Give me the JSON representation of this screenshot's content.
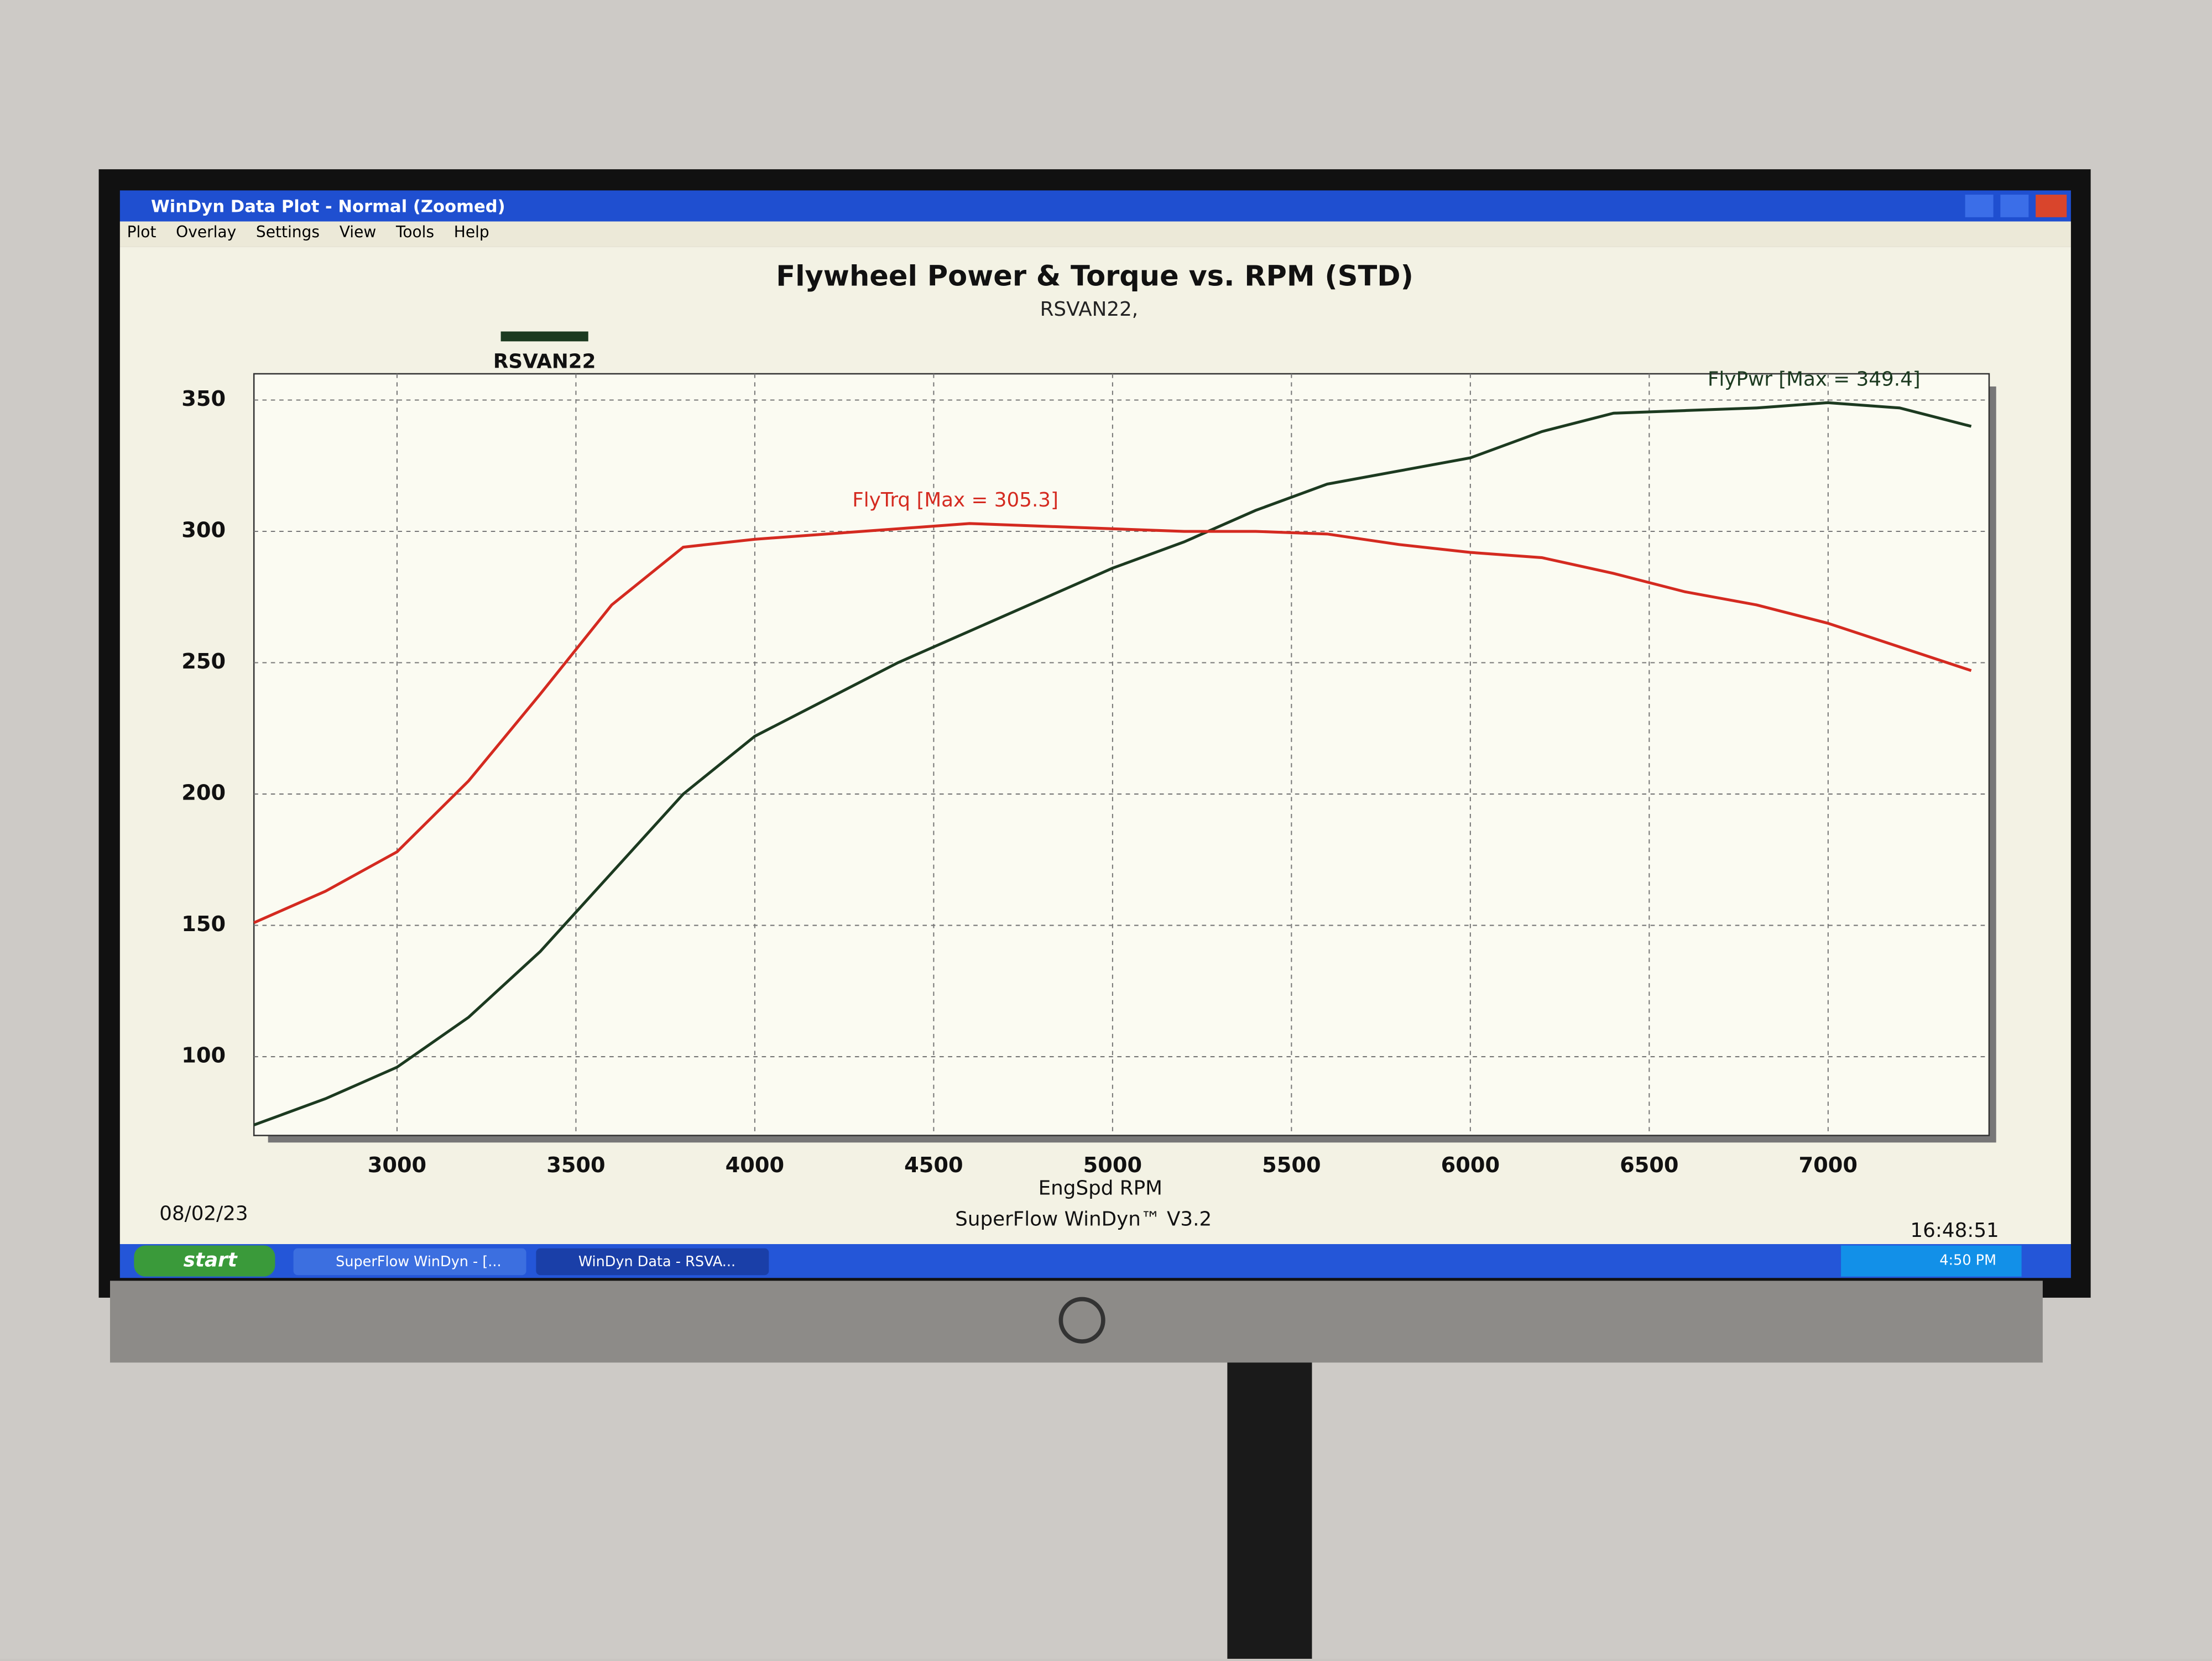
{
  "window": {
    "title": "WinDyn Data Plot - Normal  (Zoomed)",
    "menu": [
      "Plot",
      "Overlay",
      "Settings",
      "View",
      "Tools",
      "Help"
    ]
  },
  "chart_data": {
    "type": "line",
    "title": "Flywheel Power & Torque vs. RPM (STD)",
    "subtitle": "RSVAN22,",
    "legend": {
      "label": "RSVAN22",
      "color": "#1c3a20"
    },
    "x_label": "EngSpd RPM",
    "x": [
      2600,
      2800,
      3000,
      3200,
      3400,
      3600,
      3800,
      4000,
      4200,
      4400,
      4600,
      4800,
      5000,
      5200,
      5400,
      5600,
      5800,
      6000,
      6200,
      6400,
      6600,
      6800,
      7000,
      7200,
      7400
    ],
    "series": [
      {
        "name": "FlyPwr [Max = 349.4]",
        "color": "#1c3a20",
        "values": [
          74,
          84,
          96,
          115,
          140,
          170,
          200,
          222,
          236,
          250,
          262,
          274,
          286,
          296,
          308,
          318,
          323,
          328,
          338,
          345,
          346,
          347,
          349,
          347,
          340
        ]
      },
      {
        "name": "FlyTrq [Max = 305.3]",
        "color": "#d42a20",
        "values": [
          151,
          163,
          178,
          205,
          238,
          272,
          294,
          297,
          299,
          301,
          303,
          302,
          301,
          300,
          300,
          299,
          295,
          292,
          290,
          284,
          277,
          272,
          265,
          256,
          247
        ]
      }
    ],
    "xlim": [
      2600,
      7450
    ],
    "xticks": [
      3000,
      3500,
      4000,
      4500,
      5000,
      5500,
      6000,
      6500,
      7000
    ],
    "ylim": [
      70,
      360
    ],
    "yticks": [
      100,
      150,
      200,
      250,
      300,
      350
    ],
    "grid": true
  },
  "footer": {
    "date": "08/02/23",
    "software": "SuperFlow WinDyn™ V3.2",
    "time": "16:48:51"
  },
  "taskbar": {
    "start": "start",
    "items": [
      "SuperFlow WinDyn - [...",
      "WinDyn Data - RSVA..."
    ],
    "clock": "4:50 PM"
  }
}
